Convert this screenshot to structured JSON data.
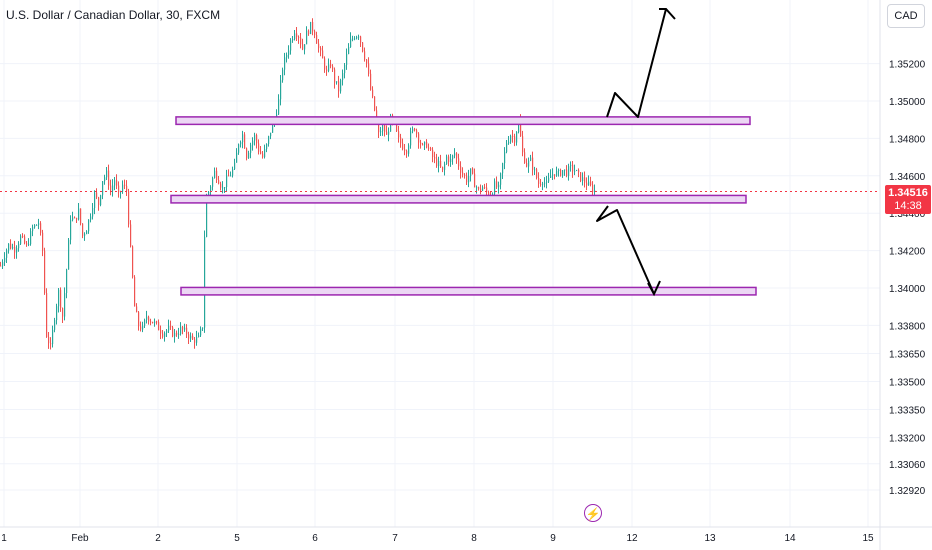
{
  "header": {
    "title": "U.S. Dollar / Canadian Dollar, 30, FXCM"
  },
  "currency_button": "CAD",
  "price_tag": {
    "price": "1.34516",
    "countdown": "14:38"
  },
  "event_icon": "lightning-icon",
  "colors": {
    "up": "#26a69a",
    "down": "#ef5350",
    "zone_fill": "#ecd7f4",
    "zone_stroke": "#9c27b0",
    "last_price": "#f23645",
    "arrow": "#000000",
    "grid": "#f0f3fa",
    "axis_text": "#131722"
  },
  "chart_data": {
    "type": "candlestick",
    "symbol": "USDCAD",
    "interval": "30",
    "y_axis_ticks": [
      "1.35200",
      "1.35000",
      "1.34800",
      "1.34600",
      "1.34400",
      "1.34200",
      "1.34000",
      "1.33800",
      "1.33650",
      "1.33500",
      "1.33350",
      "1.33200",
      "1.33060",
      "1.32920"
    ],
    "y_range": [
      1.3286,
      1.3542
    ],
    "x_axis_ticks": [
      "1",
      "Feb",
      "2",
      "5",
      "6",
      "7",
      "8",
      "9",
      "12",
      "13",
      "14",
      "15"
    ],
    "last_price": 1.34516,
    "price_path": [
      [
        0,
        1.3412
      ],
      [
        4,
        1.3418
      ],
      [
        8,
        1.3423
      ],
      [
        14,
        1.3421
      ],
      [
        20,
        1.3427
      ],
      [
        26,
        1.3422
      ],
      [
        32,
        1.3432
      ],
      [
        38,
        1.3435
      ],
      [
        42,
        1.342
      ],
      [
        46,
        1.3375
      ],
      [
        50,
        1.3368
      ],
      [
        54,
        1.3385
      ],
      [
        58,
        1.3398
      ],
      [
        62,
        1.3385
      ],
      [
        66,
        1.341
      ],
      [
        70,
        1.3438
      ],
      [
        74,
        1.3436
      ],
      [
        78,
        1.3441
      ],
      [
        82,
        1.3428
      ],
      [
        86,
        1.3432
      ],
      [
        90,
        1.344
      ],
      [
        94,
        1.345
      ],
      [
        98,
        1.3445
      ],
      [
        102,
        1.3458
      ],
      [
        106,
        1.3461
      ],
      [
        110,
        1.3452
      ],
      [
        114,
        1.3458
      ],
      [
        118,
        1.3449
      ],
      [
        122,
        1.3455
      ],
      [
        126,
        1.3452
      ],
      [
        130,
        1.342
      ],
      [
        134,
        1.339
      ],
      [
        138,
        1.338
      ],
      [
        142,
        1.3378
      ],
      [
        146,
        1.3385
      ],
      [
        150,
        1.3383
      ],
      [
        156,
        1.338
      ],
      [
        162,
        1.3376
      ],
      [
        168,
        1.3378
      ],
      [
        174,
        1.3375
      ],
      [
        180,
        1.3378
      ],
      [
        186,
        1.3376
      ],
      [
        192,
        1.3372
      ],
      [
        198,
        1.3373
      ],
      [
        202,
        1.338
      ],
      [
        204,
        1.3428
      ],
      [
        206,
        1.3448
      ],
      [
        210,
        1.3455
      ],
      [
        214,
        1.3462
      ],
      [
        218,
        1.3458
      ],
      [
        222,
        1.3453
      ],
      [
        226,
        1.3458
      ],
      [
        230,
        1.3461
      ],
      [
        234,
        1.3465
      ],
      [
        238,
        1.3478
      ],
      [
        242,
        1.3482
      ],
      [
        246,
        1.3471
      ],
      [
        250,
        1.3477
      ],
      [
        254,
        1.3481
      ],
      [
        258,
        1.3474
      ],
      [
        262,
        1.347
      ],
      [
        266,
        1.3476
      ],
      [
        270,
        1.3484
      ],
      [
        274,
        1.349
      ],
      [
        278,
        1.35
      ],
      [
        282,
        1.3518
      ],
      [
        286,
        1.3525
      ],
      [
        290,
        1.3532
      ],
      [
        294,
        1.3538
      ],
      [
        298,
        1.3535
      ],
      [
        302,
        1.3528
      ],
      [
        306,
        1.3536
      ],
      [
        310,
        1.354
      ],
      [
        314,
        1.3537
      ],
      [
        318,
        1.3528
      ],
      [
        322,
        1.3522
      ],
      [
        326,
        1.3515
      ],
      [
        330,
        1.352
      ],
      [
        334,
        1.3511
      ],
      [
        338,
        1.3506
      ],
      [
        342,
        1.3514
      ],
      [
        346,
        1.3524
      ],
      [
        350,
        1.3532
      ],
      [
        354,
        1.3535
      ],
      [
        358,
        1.3536
      ],
      [
        362,
        1.3528
      ],
      [
        366,
        1.352
      ],
      [
        370,
        1.3506
      ],
      [
        374,
        1.3495
      ],
      [
        378,
        1.3482
      ],
      [
        382,
        1.3487
      ],
      [
        386,
        1.3481
      ],
      [
        390,
        1.349
      ],
      [
        394,
        1.3486
      ],
      [
        398,
        1.3479
      ],
      [
        402,
        1.3476
      ],
      [
        406,
        1.3474
      ],
      [
        410,
        1.3482
      ],
      [
        414,
        1.3486
      ],
      [
        418,
        1.348
      ],
      [
        422,
        1.3475
      ],
      [
        426,
        1.3477
      ],
      [
        430,
        1.3472
      ],
      [
        434,
        1.3468
      ],
      [
        438,
        1.3466
      ],
      [
        442,
        1.3462
      ],
      [
        446,
        1.347
      ],
      [
        450,
        1.3468
      ],
      [
        454,
        1.3472
      ],
      [
        458,
        1.3466
      ],
      [
        462,
        1.3461
      ],
      [
        466,
        1.3458
      ],
      [
        470,
        1.3462
      ],
      [
        474,
        1.3456
      ],
      [
        478,
        1.3452
      ],
      [
        482,
        1.3454
      ],
      [
        486,
        1.3451
      ],
      [
        490,
        1.345
      ],
      [
        494,
        1.3455
      ],
      [
        498,
        1.3453
      ],
      [
        502,
        1.3466
      ],
      [
        506,
        1.3478
      ],
      [
        510,
        1.3482
      ],
      [
        514,
        1.348
      ],
      [
        518,
        1.3489
      ],
      [
        522,
        1.3472
      ],
      [
        526,
        1.3466
      ],
      [
        530,
        1.3468
      ],
      [
        534,
        1.3462
      ],
      [
        538,
        1.3456
      ],
      [
        542,
        1.3458
      ],
      [
        546,
        1.3455
      ],
      [
        550,
        1.346
      ],
      [
        554,
        1.3462
      ],
      [
        558,
        1.3461
      ],
      [
        562,
        1.3463
      ],
      [
        566,
        1.3462
      ],
      [
        570,
        1.3464
      ],
      [
        574,
        1.3463
      ],
      [
        578,
        1.346
      ],
      [
        582,
        1.3458
      ],
      [
        586,
        1.3456
      ],
      [
        590,
        1.3454
      ],
      [
        594,
        1.3452
      ]
    ],
    "zones": [
      {
        "name": "upper-zone",
        "top": 1.34915,
        "bottom": 1.34875
      },
      {
        "name": "middle-zone",
        "top": 1.34495,
        "bottom": 1.34455
      },
      {
        "name": "lower-zone",
        "top": 1.34003,
        "bottom": 1.33963
      }
    ]
  }
}
